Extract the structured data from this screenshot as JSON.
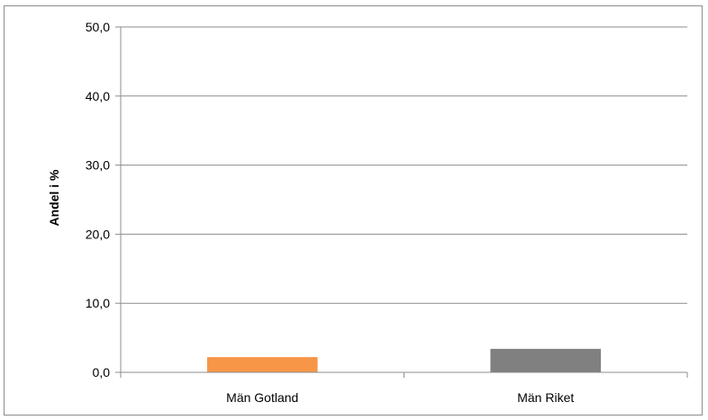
{
  "chart_data": {
    "type": "bar",
    "categories": [
      "Män Gotland",
      "Män Riket"
    ],
    "values": [
      2.2,
      3.4
    ],
    "colors": [
      "#f79646",
      "#808080"
    ],
    "ylabel": "Andel i %",
    "ylim": [
      0,
      50
    ],
    "yticks": [
      0,
      10,
      20,
      30,
      40,
      50
    ],
    "ytick_labels": [
      "0,0",
      "10,0",
      "20,0",
      "30,0",
      "40,0",
      "50,0"
    ],
    "grid": true,
    "legend": false
  }
}
